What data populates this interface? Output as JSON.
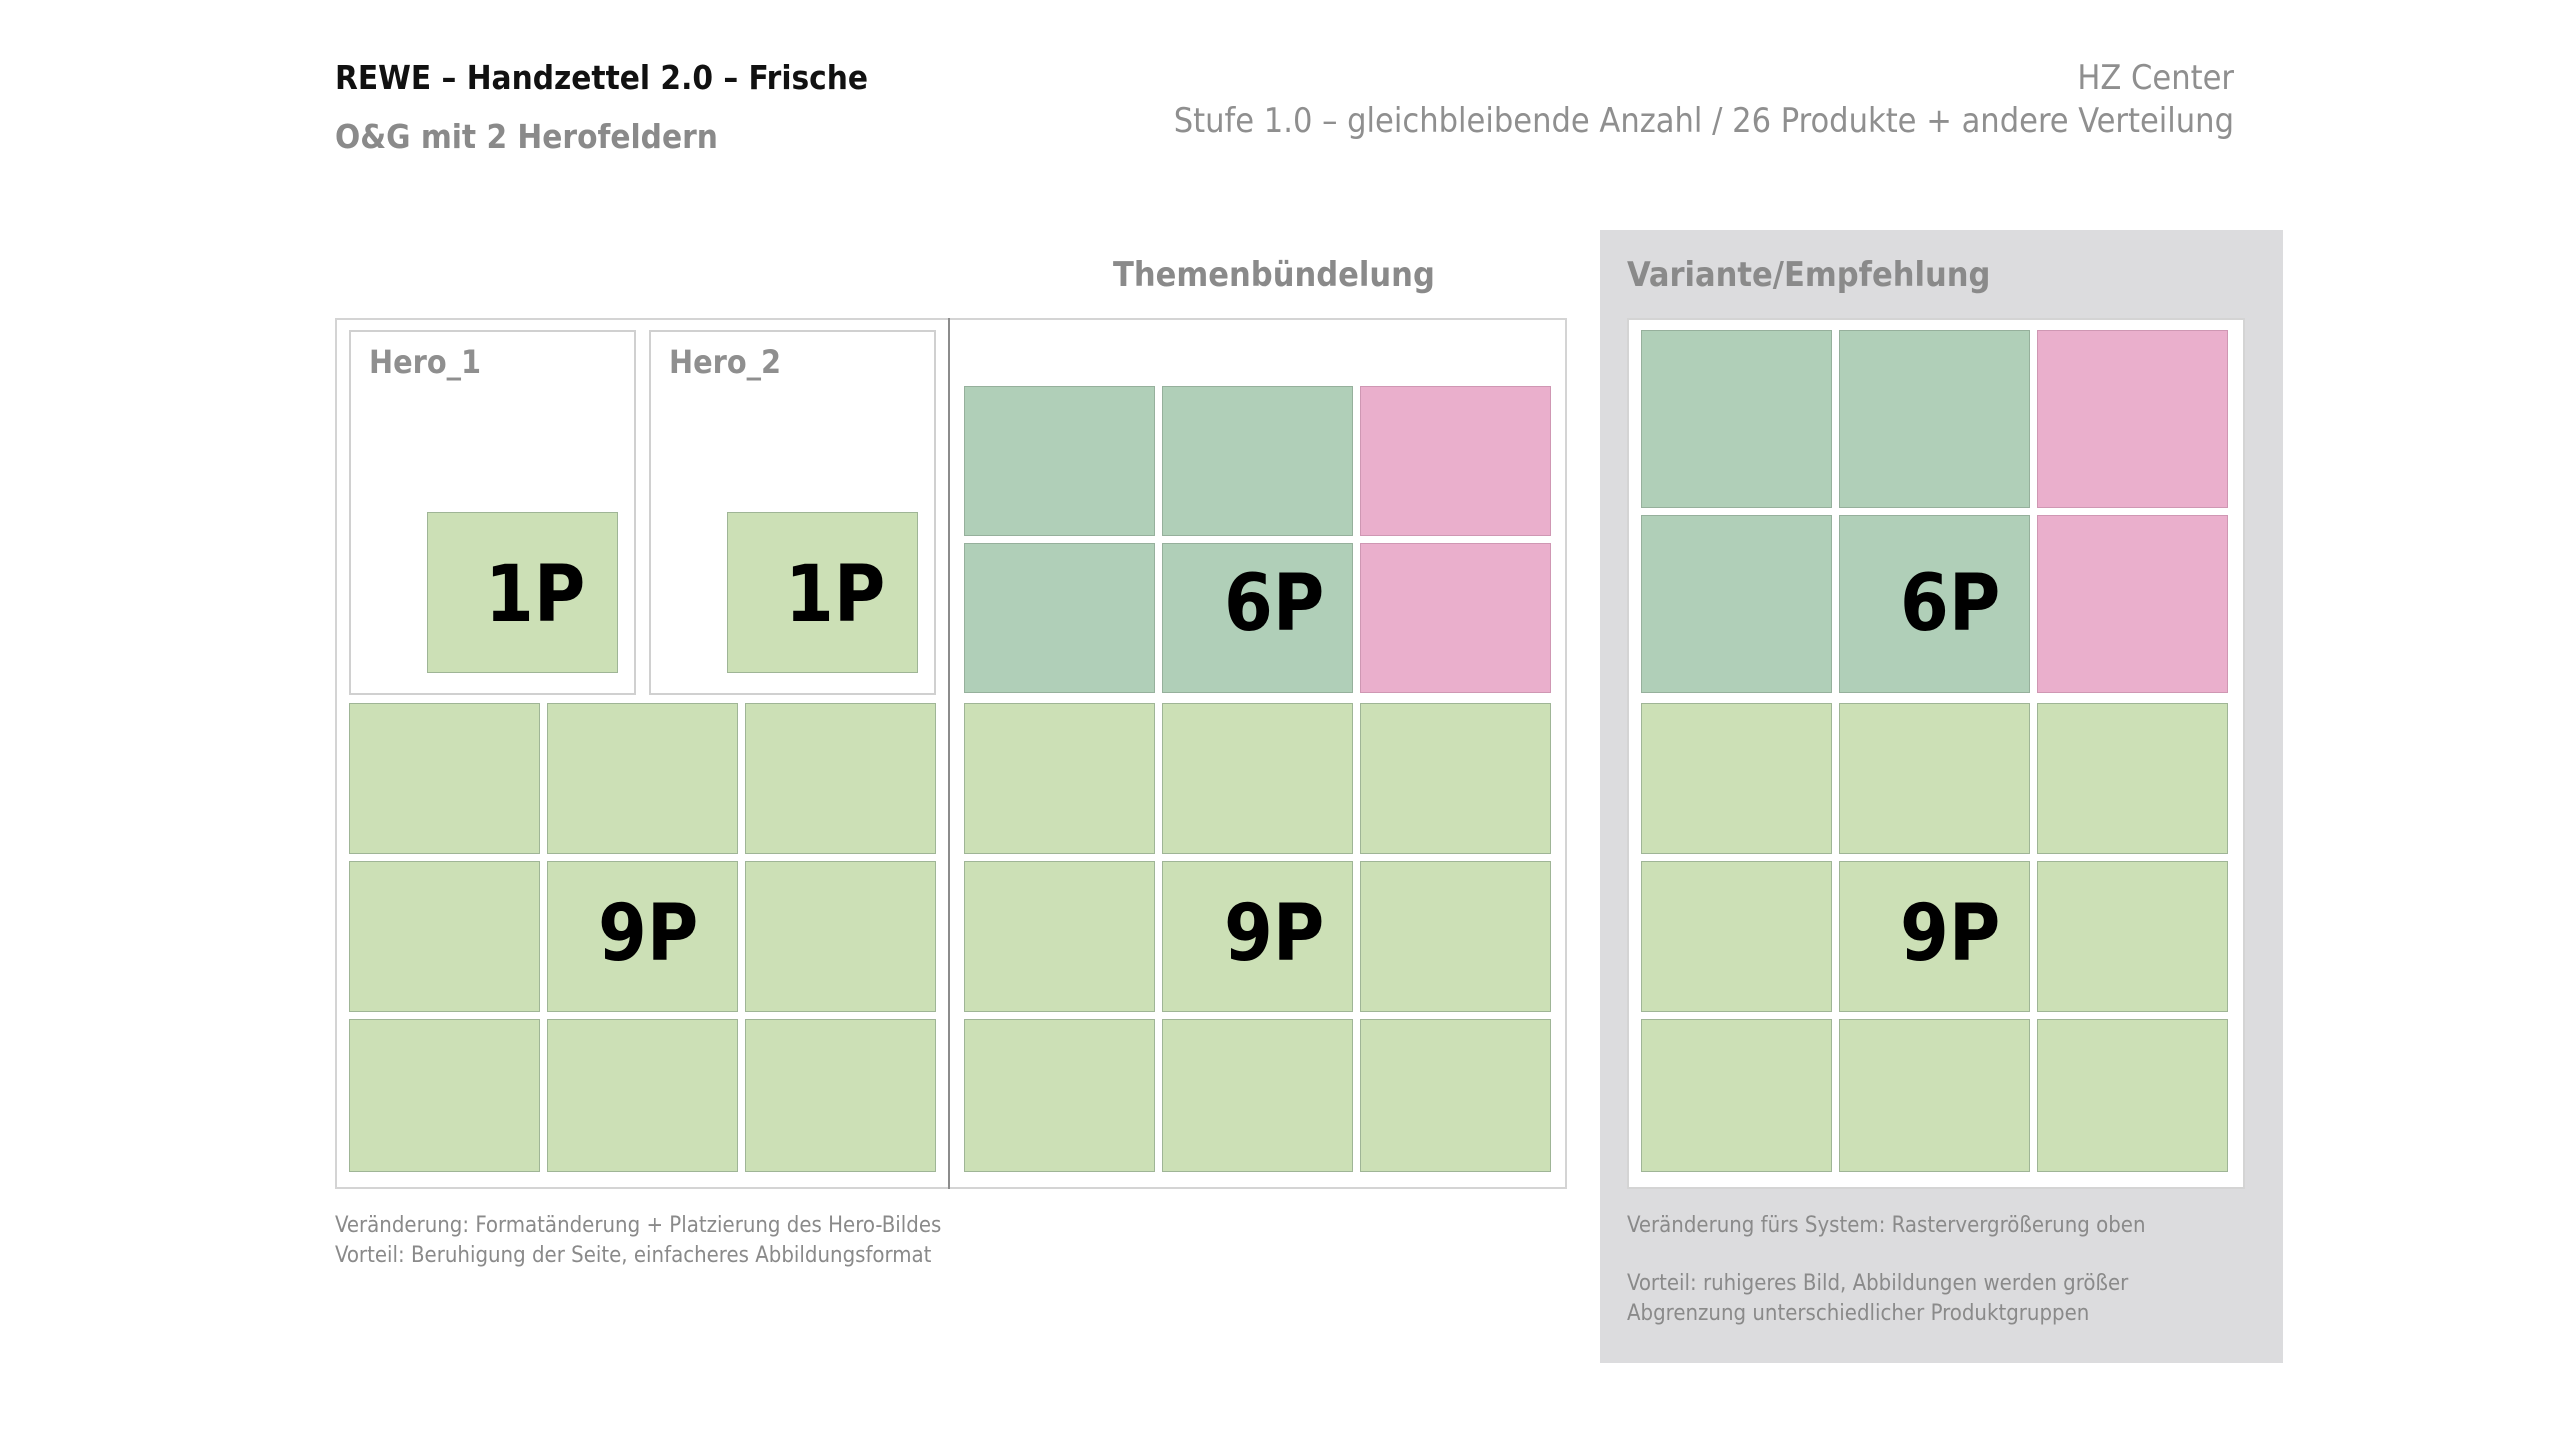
{
  "header": {
    "title": "REWE – Handzettel 2.0 – Frische",
    "subtitle": "O&G mit 2 Herofeldern",
    "right_line1": "HZ Center",
    "right_line2": "Stufe 1.0 – gleichbleibende Anzahl / 26 Produkte + andere Verteilung"
  },
  "sections": {
    "themen_title": "Themenbündelung",
    "variante_title": "Variante/Empfehlung"
  },
  "left_block": {
    "hero1_label": "Hero_1",
    "hero2_label": "Hero_2",
    "hero1_count": "1P",
    "hero2_count": "1P",
    "grid_count": "9P"
  },
  "middle_block": {
    "top_count": "6P",
    "grid_count": "9P"
  },
  "right_block": {
    "top_count": "6P",
    "grid_count": "9P"
  },
  "notes": {
    "left_line1": "Veränderung: Formatänderung + Platzierung des Hero-Bildes",
    "left_line2": "Vorteil: Beruhigung der Seite, einfacheres Abbildungsformat",
    "right_line1": "Veränderung fürs System: Rastervergrößerung oben",
    "right_line2": "Vorteil: ruhigeres Bild, Abbildungen werden größer",
    "right_line3": "Abgrenzung unterschiedlicher Produktgruppen"
  },
  "colors": {
    "light_green": "#cce0b6",
    "dark_green": "#b0cfb8",
    "pink": "#eaafcc",
    "panel_grey": "#dcdcde"
  }
}
